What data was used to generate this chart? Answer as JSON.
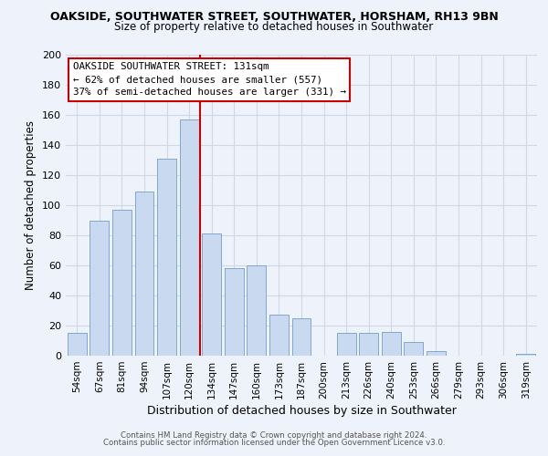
{
  "title": "OAKSIDE, SOUTHWATER STREET, SOUTHWATER, HORSHAM, RH13 9BN",
  "subtitle": "Size of property relative to detached houses in Southwater",
  "xlabel": "Distribution of detached houses by size in Southwater",
  "ylabel": "Number of detached properties",
  "bar_labels": [
    "54sqm",
    "67sqm",
    "81sqm",
    "94sqm",
    "107sqm",
    "120sqm",
    "134sqm",
    "147sqm",
    "160sqm",
    "173sqm",
    "187sqm",
    "200sqm",
    "213sqm",
    "226sqm",
    "240sqm",
    "253sqm",
    "266sqm",
    "279sqm",
    "293sqm",
    "306sqm",
    "319sqm"
  ],
  "bar_heights": [
    15,
    90,
    97,
    109,
    131,
    157,
    81,
    58,
    60,
    27,
    25,
    0,
    15,
    15,
    16,
    9,
    3,
    0,
    0,
    0,
    1
  ],
  "bar_color": "#c9d9f0",
  "bar_edge_color": "#7fa8d0",
  "vline_x_index": 6,
  "vline_color": "#cc0000",
  "annotation_title": "OAKSIDE SOUTHWATER STREET: 131sqm",
  "annotation_line1": "← 62% of detached houses are smaller (557)",
  "annotation_line2": "37% of semi-detached houses are larger (331) →",
  "annotation_box_color": "white",
  "annotation_box_edge_color": "#cc0000",
  "ylim": [
    0,
    200
  ],
  "yticks": [
    0,
    20,
    40,
    60,
    80,
    100,
    120,
    140,
    160,
    180,
    200
  ],
  "footer_line1": "Contains HM Land Registry data © Crown copyright and database right 2024.",
  "footer_line2": "Contains public sector information licensed under the Open Government Licence v3.0.",
  "grid_color": "#d0d8e8",
  "background_color": "#eef2fa"
}
